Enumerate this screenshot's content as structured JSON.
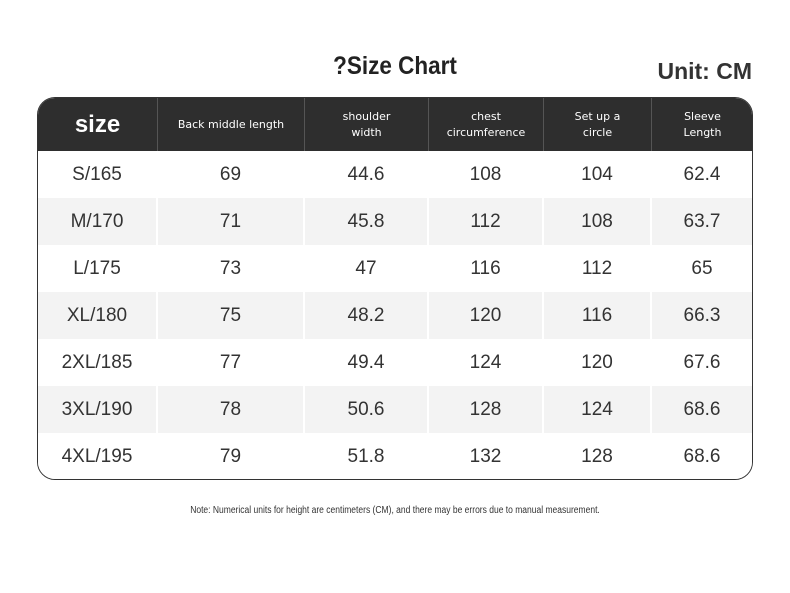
{
  "header": {
    "title": "?Size Chart",
    "unit": "Unit: CM"
  },
  "table": {
    "columns": [
      [
        "size"
      ],
      [
        "Back middle length"
      ],
      [
        "shoulder",
        "width"
      ],
      [
        "chest",
        "circumference"
      ],
      [
        "Set up a",
        "circle"
      ],
      [
        "Sleeve",
        "Length"
      ]
    ],
    "rows": [
      [
        "S/165",
        69,
        44.6,
        108,
        104,
        62.4
      ],
      [
        "M/170",
        71,
        45.8,
        112,
        108,
        63.7
      ],
      [
        "L/175",
        73,
        47,
        116,
        112,
        65
      ],
      [
        "XL/180",
        75,
        48.2,
        120,
        116,
        66.3
      ],
      [
        "2XL/185",
        77,
        49.4,
        124,
        120,
        67.6
      ],
      [
        "3XL/190",
        78,
        50.6,
        128,
        124,
        68.6
      ],
      [
        "4XL/195",
        79,
        51.8,
        132,
        128,
        68.6
      ]
    ]
  },
  "note": "Note: Numerical units for height are centimeters (CM), and there may be errors due to manual measurement."
}
